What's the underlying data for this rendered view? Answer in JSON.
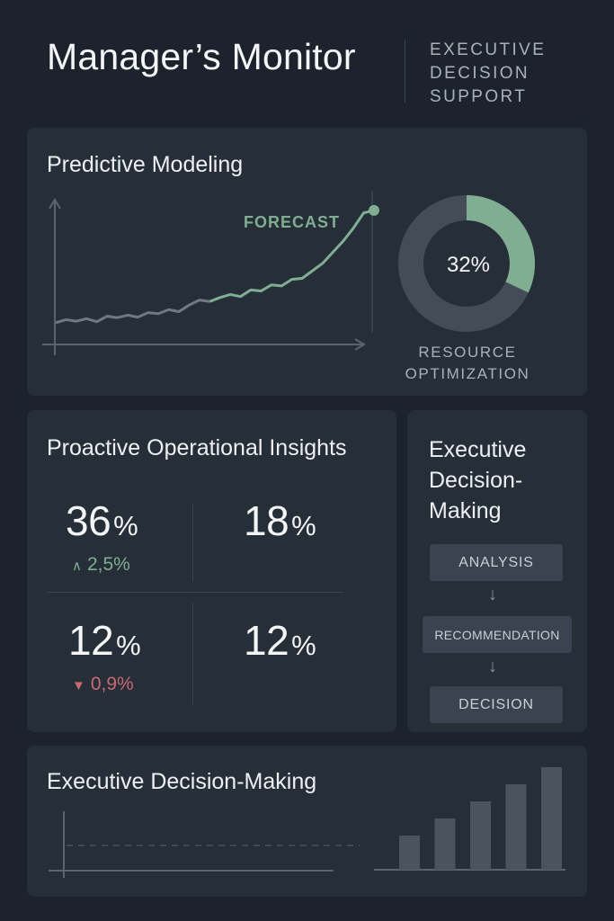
{
  "header": {
    "title": "Manager’s Monitor",
    "subtitle": "EXECUTIVE\nDECISION\nSUPPORT"
  },
  "predictive": {
    "title": "Predictive Modeling",
    "forecast_label": "FORECAST",
    "donut_value": "32%",
    "donut_fraction": 0.32,
    "donut_label": "RESOURCE\nOPTIMIZATION"
  },
  "insights": {
    "title": "Proactive Operational Insights",
    "metrics": [
      {
        "value": "36",
        "unit": "%",
        "delta": "2,5%",
        "delta_dir": "up"
      },
      {
        "value": "18",
        "unit": "%"
      },
      {
        "value": "12",
        "unit": "%",
        "delta": "0,9%",
        "delta_dir": "down"
      },
      {
        "value": "12",
        "unit": "%"
      }
    ]
  },
  "decision_flow": {
    "title": "Executive\nDecision-\nMaking",
    "steps": [
      "ANALYSIS",
      "RECOMMENDATION",
      "DECISION"
    ]
  },
  "bottom": {
    "title": "Executive Decision-Making"
  },
  "colors": {
    "background": "#1c232c",
    "card": "#262e38",
    "accent_green": "#7fae93",
    "negative_red": "#c76a73",
    "muted_line": "#5a6470"
  },
  "chart_data": [
    {
      "type": "line",
      "title": "Predictive Modeling",
      "series": [
        {
          "name": "",
          "values": [
            2,
            2.6,
            2.3,
            2.8,
            2.2,
            3.3,
            3,
            3.5,
            3.1,
            4,
            3.8,
            4.6,
            4.2,
            5.5,
            6.5,
            6.2
          ]
        },
        {
          "name": "FORECAST",
          "values": [
            6.2,
            7,
            7.6,
            7.2,
            8.5,
            8.3,
            9.5,
            9.3,
            10.6,
            10.8,
            12.3,
            13.8,
            16,
            18.2,
            20.8,
            23.8,
            24.3
          ]
        }
      ],
      "grid": false
    },
    {
      "type": "pie",
      "values": [
        32,
        68
      ],
      "labels": [
        "32%",
        ""
      ]
    },
    {
      "type": "bar",
      "values": [
        5,
        7.5,
        10,
        12.5,
        15
      ],
      "grid": false
    }
  ]
}
